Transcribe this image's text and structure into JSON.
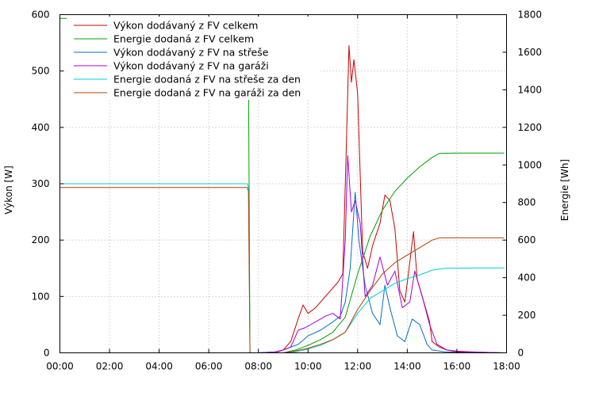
{
  "chart_data": {
    "type": "line",
    "title": "",
    "xlabel": "",
    "ylabel_left": "Výkon [W]",
    "ylabel_right": "Energie [Wh]",
    "x_ticks": [
      "00:00",
      "02:00",
      "04:00",
      "06:00",
      "08:00",
      "10:00",
      "12:00",
      "14:00",
      "16:00",
      "18:00"
    ],
    "y_left_ticks": [
      "0",
      "100",
      "200",
      "300",
      "400",
      "500",
      "600"
    ],
    "y_right_ticks": [
      "0",
      "200",
      "400",
      "600",
      "800",
      "1000",
      "1200",
      "1400",
      "1600",
      "1800"
    ],
    "xlim_hours": [
      0,
      18
    ],
    "ylim_left": [
      0,
      600
    ],
    "ylim_right": [
      0,
      1800
    ],
    "grid": "dotted",
    "legend_position": "top-left",
    "series": [
      {
        "name": "Výkon dodávaný z FV celkem",
        "axis": "left",
        "color": "#cc0000",
        "points": [
          [
            8.0,
            0
          ],
          [
            8.6,
            1
          ],
          [
            9.0,
            5
          ],
          [
            9.3,
            20
          ],
          [
            9.6,
            60
          ],
          [
            9.8,
            85
          ],
          [
            10.0,
            70
          ],
          [
            10.3,
            80
          ],
          [
            10.6,
            95
          ],
          [
            10.9,
            110
          ],
          [
            11.2,
            125
          ],
          [
            11.4,
            140
          ],
          [
            11.55,
            380
          ],
          [
            11.65,
            545
          ],
          [
            11.75,
            480
          ],
          [
            11.85,
            520
          ],
          [
            12.0,
            460
          ],
          [
            12.2,
            180
          ],
          [
            12.4,
            150
          ],
          [
            12.6,
            190
          ],
          [
            12.9,
            230
          ],
          [
            13.1,
            280
          ],
          [
            13.3,
            270
          ],
          [
            13.5,
            220
          ],
          [
            13.7,
            110
          ],
          [
            13.9,
            90
          ],
          [
            14.1,
            160
          ],
          [
            14.25,
            215
          ],
          [
            14.4,
            130
          ],
          [
            14.6,
            100
          ],
          [
            14.9,
            55
          ],
          [
            15.0,
            20
          ],
          [
            15.3,
            10
          ],
          [
            15.6,
            5
          ],
          [
            16.0,
            3
          ],
          [
            16.5,
            2
          ],
          [
            17.0,
            1
          ],
          [
            17.9,
            0
          ]
        ]
      },
      {
        "name": "Energie dodaná z FV celkem",
        "axis": "right",
        "color": "#00a000",
        "points": [
          [
            0.0,
            1780
          ],
          [
            7.55,
            1780
          ],
          [
            7.6,
            1500
          ],
          [
            7.66,
            0
          ],
          [
            9.0,
            0
          ],
          [
            9.5,
            15
          ],
          [
            10.0,
            40
          ],
          [
            10.5,
            70
          ],
          [
            11.0,
            110
          ],
          [
            11.5,
            190
          ],
          [
            12.0,
            420
          ],
          [
            12.5,
            620
          ],
          [
            13.0,
            760
          ],
          [
            13.5,
            860
          ],
          [
            14.0,
            930
          ],
          [
            14.5,
            990
          ],
          [
            15.0,
            1040
          ],
          [
            15.3,
            1062
          ],
          [
            16.0,
            1063
          ],
          [
            17.9,
            1063
          ]
        ]
      },
      {
        "name": "Výkon dodávaný z FV na střeše",
        "axis": "left",
        "color": "#0070c0",
        "points": [
          [
            8.0,
            0
          ],
          [
            8.8,
            2
          ],
          [
            9.3,
            10
          ],
          [
            9.6,
            15
          ],
          [
            10.0,
            30
          ],
          [
            10.5,
            40
          ],
          [
            11.0,
            55
          ],
          [
            11.3,
            65
          ],
          [
            11.5,
            90
          ],
          [
            11.7,
            150
          ],
          [
            11.9,
            285
          ],
          [
            12.05,
            200
          ],
          [
            12.3,
            120
          ],
          [
            12.6,
            70
          ],
          [
            12.9,
            50
          ],
          [
            13.1,
            120
          ],
          [
            13.3,
            80
          ],
          [
            13.6,
            30
          ],
          [
            13.9,
            20
          ],
          [
            14.2,
            60
          ],
          [
            14.5,
            50
          ],
          [
            14.8,
            15
          ],
          [
            15.0,
            5
          ],
          [
            15.5,
            2
          ],
          [
            16.0,
            1
          ],
          [
            17.9,
            0
          ]
        ]
      },
      {
        "name": "Výkon dodávaný z FV na garáži",
        "axis": "left",
        "color": "#a000e0",
        "points": [
          [
            8.0,
            0
          ],
          [
            8.8,
            2
          ],
          [
            9.3,
            10
          ],
          [
            9.6,
            40
          ],
          [
            9.9,
            45
          ],
          [
            10.3,
            55
          ],
          [
            10.7,
            65
          ],
          [
            11.0,
            70
          ],
          [
            11.3,
            60
          ],
          [
            11.5,
            200
          ],
          [
            11.6,
            350
          ],
          [
            11.75,
            250
          ],
          [
            11.9,
            270
          ],
          [
            12.1,
            230
          ],
          [
            12.3,
            100
          ],
          [
            12.6,
            120
          ],
          [
            12.9,
            170
          ],
          [
            13.2,
            120
          ],
          [
            13.5,
            145
          ],
          [
            13.8,
            80
          ],
          [
            14.1,
            90
          ],
          [
            14.3,
            145
          ],
          [
            14.6,
            100
          ],
          [
            14.9,
            50
          ],
          [
            15.2,
            15
          ],
          [
            15.6,
            5
          ],
          [
            16.0,
            2
          ],
          [
            17.0,
            1
          ],
          [
            17.9,
            0
          ]
        ]
      },
      {
        "name": "Energie dodaná z FV na střeše za den",
        "axis": "right",
        "color": "#00d0d0",
        "points": [
          [
            0.0,
            900
          ],
          [
            7.55,
            900
          ],
          [
            7.6,
            880
          ],
          [
            7.66,
            0
          ],
          [
            9.0,
            0
          ],
          [
            9.5,
            5
          ],
          [
            10.0,
            20
          ],
          [
            10.5,
            40
          ],
          [
            11.0,
            70
          ],
          [
            11.5,
            110
          ],
          [
            12.0,
            210
          ],
          [
            12.5,
            290
          ],
          [
            13.0,
            330
          ],
          [
            13.5,
            370
          ],
          [
            14.0,
            395
          ],
          [
            14.5,
            415
          ],
          [
            15.0,
            440
          ],
          [
            15.5,
            450
          ],
          [
            16.0,
            451
          ],
          [
            17.9,
            452
          ]
        ]
      },
      {
        "name": "Energie dodaná z FV na garáži za den",
        "axis": "right",
        "color": "#b04000",
        "points": [
          [
            0.0,
            880
          ],
          [
            7.55,
            880
          ],
          [
            7.6,
            860
          ],
          [
            7.66,
            0
          ],
          [
            9.0,
            0
          ],
          [
            9.5,
            10
          ],
          [
            10.0,
            25
          ],
          [
            10.5,
            45
          ],
          [
            11.0,
            70
          ],
          [
            11.5,
            110
          ],
          [
            12.0,
            230
          ],
          [
            12.5,
            330
          ],
          [
            13.0,
            420
          ],
          [
            13.5,
            480
          ],
          [
            14.0,
            520
          ],
          [
            14.5,
            560
          ],
          [
            15.0,
            600
          ],
          [
            15.3,
            612
          ],
          [
            16.0,
            612
          ],
          [
            17.9,
            612
          ]
        ]
      }
    ]
  }
}
